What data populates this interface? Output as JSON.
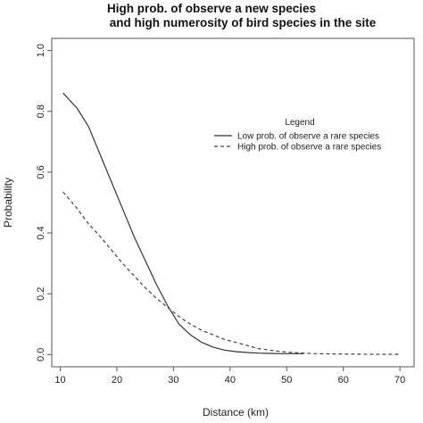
{
  "chart_data": {
    "type": "line",
    "title_lines": [
      "High prob. of observe a new species",
      "and high numerosity of bird species in the site"
    ],
    "xlabel": "Distance (km)",
    "ylabel": "Probability",
    "xlim": [
      8.5,
      72.5
    ],
    "ylim": [
      -0.04,
      1.04
    ],
    "xticks": [
      "10",
      "20",
      "30",
      "40",
      "50",
      "60",
      "70"
    ],
    "yticks": [
      "0.0",
      "0.2",
      "0.4",
      "0.6",
      "0.8",
      "1.0"
    ],
    "grid": false,
    "legend": {
      "title": "Legend",
      "placement": "top-right"
    },
    "series": [
      {
        "name": "Low prob. of observe a rare species",
        "style": "solid",
        "color": "#333333",
        "x": [
          10.5,
          13,
          15,
          17,
          19,
          21,
          23,
          25,
          27,
          29,
          31,
          33,
          35,
          37,
          39,
          41,
          43,
          45,
          47,
          49,
          51,
          53
        ],
        "y": [
          0.86,
          0.81,
          0.75,
          0.66,
          0.57,
          0.48,
          0.39,
          0.31,
          0.23,
          0.16,
          0.1,
          0.065,
          0.04,
          0.025,
          0.015,
          0.01,
          0.007,
          0.005,
          0.004,
          0.003,
          0.003,
          0.003
        ]
      },
      {
        "name": "High prob. of observe a rare species",
        "style": "dashed",
        "color": "#444444",
        "x": [
          10.5,
          13,
          15,
          17,
          19,
          21,
          23,
          25,
          27,
          29,
          31,
          33,
          35,
          37,
          39,
          41,
          43,
          45,
          47,
          49,
          51,
          53,
          55,
          60,
          65,
          70
        ],
        "y": [
          0.535,
          0.48,
          0.43,
          0.39,
          0.345,
          0.3,
          0.26,
          0.22,
          0.185,
          0.155,
          0.125,
          0.1,
          0.08,
          0.065,
          0.05,
          0.04,
          0.03,
          0.02,
          0.015,
          0.01,
          0.007,
          0.005,
          0.003,
          0.002,
          0.001,
          0.001
        ]
      }
    ]
  }
}
